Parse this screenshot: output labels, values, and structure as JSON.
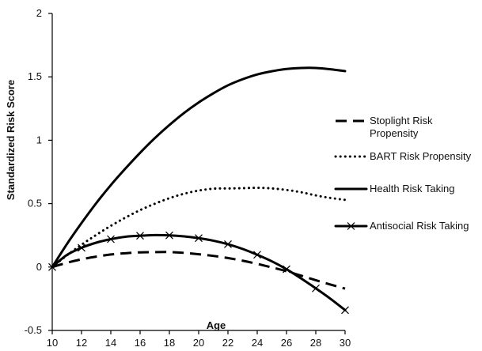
{
  "chart_data": {
    "type": "line",
    "title": "",
    "xlabel": "Age",
    "ylabel": "Standardized Risk Score",
    "xlim": [
      10,
      30
    ],
    "ylim": [
      -0.5,
      2
    ],
    "x_ticks": [
      "10",
      "12",
      "14",
      "16",
      "18",
      "20",
      "22",
      "24",
      "26",
      "28",
      "30"
    ],
    "y_ticks": [
      "-0.5",
      "0",
      "0.5",
      "1",
      "1.5",
      "2"
    ],
    "grid": false,
    "legend_position": "right",
    "x": [
      10,
      11,
      12,
      13,
      14,
      15,
      16,
      17,
      18,
      19,
      20,
      21,
      22,
      23,
      24,
      25,
      26,
      27,
      28,
      29,
      30
    ],
    "series": [
      {
        "name": "Stoplight Risk Propensity",
        "style": "dashed",
        "color": "#000000",
        "values": [
          0,
          0.034,
          0.061,
          0.082,
          0.099,
          0.109,
          0.116,
          0.118,
          0.118,
          0.112,
          0.101,
          0.088,
          0.071,
          0.05,
          0.025,
          -0.003,
          -0.033,
          -0.068,
          -0.104,
          -0.138,
          -0.17
        ]
      },
      {
        "name": "BART Risk Propensity",
        "style": "dotted",
        "color": "#000000",
        "values": [
          0,
          0.092,
          0.176,
          0.253,
          0.325,
          0.39,
          0.449,
          0.499,
          0.543,
          0.578,
          0.603,
          0.618,
          0.62,
          0.622,
          0.625,
          0.62,
          0.608,
          0.59,
          0.565,
          0.545,
          0.53
        ]
      },
      {
        "name": "Health Risk Taking",
        "style": "solid",
        "color": "#000000",
        "values": [
          0,
          0.181,
          0.347,
          0.503,
          0.646,
          0.777,
          0.901,
          1.016,
          1.12,
          1.215,
          1.298,
          1.37,
          1.433,
          1.481,
          1.519,
          1.544,
          1.562,
          1.57,
          1.57,
          1.56,
          1.545
        ]
      },
      {
        "name": "Antisocial Risk Taking",
        "style": "solid-x",
        "color": "#000000",
        "values": [
          0,
          0.095,
          0.152,
          0.192,
          0.22,
          0.239,
          0.247,
          0.252,
          0.25,
          0.242,
          0.228,
          0.208,
          0.18,
          0.143,
          0.097,
          0.045,
          -0.017,
          -0.09,
          -0.168,
          -0.25,
          -0.34
        ]
      }
    ]
  }
}
